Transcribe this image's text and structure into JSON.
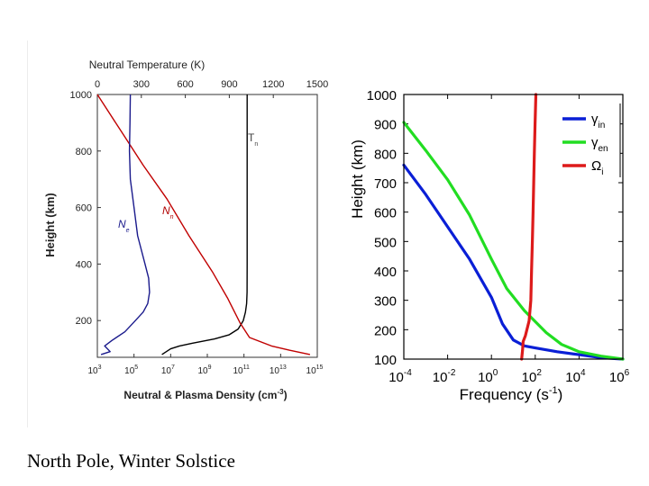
{
  "caption": "North Pole, Winter Solstice",
  "chart_data": [
    {
      "type": "line",
      "title": "",
      "top_axis_label": "Neutral Temperature (K)",
      "top_ticks": [
        "0",
        "300",
        "600",
        "900",
        "1200",
        "1500"
      ],
      "top_tick_values": [
        0,
        300,
        600,
        900,
        1200,
        1500
      ],
      "xlabel": "Neutral & Plasma Density (cm",
      "xlabel_sup": "-3",
      "xlabel_end": ")",
      "x_scale": "log",
      "xlim_log10": [
        3,
        15
      ],
      "x_ticks": [
        {
          "base": "10",
          "exp": "3",
          "log": 3
        },
        {
          "base": "10",
          "exp": "5",
          "log": 5
        },
        {
          "base": "10",
          "exp": "7",
          "log": 7
        },
        {
          "base": "10",
          "exp": "9",
          "log": 9
        },
        {
          "base": "10",
          "exp": "11",
          "log": 11
        },
        {
          "base": "10",
          "exp": "13",
          "log": 13
        },
        {
          "base": "10",
          "exp": "15",
          "log": 15
        }
      ],
      "ylabel": "Height (km)",
      "ylim": [
        70,
        1000
      ],
      "y_ticks": [
        "200",
        "400",
        "600",
        "800",
        "1000"
      ],
      "y_tick_values": [
        200,
        400,
        600,
        800,
        1000
      ],
      "series": [
        {
          "name": "T",
          "sub": "n",
          "axis": "top",
          "color": "#000000",
          "points": [
            [
              440,
              80
            ],
            [
              500,
              100
            ],
            [
              560,
              110
            ],
            [
              650,
              120
            ],
            [
              800,
              135
            ],
            [
              900,
              150
            ],
            [
              960,
              170
            ],
            [
              995,
              200
            ],
            [
              1010,
              230
            ],
            [
              1018,
              260
            ],
            [
              1021,
              300
            ],
            [
              1022,
              400
            ],
            [
              1022,
              600
            ],
            [
              1022,
              800
            ],
            [
              1022,
              1000
            ]
          ]
        },
        {
          "name": "N",
          "sub": "n",
          "axis": "bottom",
          "color": "#c00000",
          "points": [
            [
              3.0,
              1000
            ],
            [
              4.3,
              870
            ],
            [
              5.5,
              750
            ],
            [
              6.8,
              630
            ],
            [
              8.0,
              500
            ],
            [
              9.3,
              370
            ],
            [
              10.1,
              280
            ],
            [
              10.8,
              190
            ],
            [
              11.3,
              140
            ],
            [
              12.5,
              110
            ],
            [
              13.5,
              95
            ],
            [
              14.6,
              80
            ]
          ]
        },
        {
          "name": "N",
          "sub": "e",
          "axis": "bottom",
          "color": "#1a1a8c",
          "points": [
            [
              3.2,
              80
            ],
            [
              3.7,
              90
            ],
            [
              3.4,
              110
            ],
            [
              3.8,
              130
            ],
            [
              4.5,
              160
            ],
            [
              5.0,
              195
            ],
            [
              5.5,
              230
            ],
            [
              5.75,
              260
            ],
            [
              5.85,
              300
            ],
            [
              5.8,
              350
            ],
            [
              5.6,
              400
            ],
            [
              5.2,
              500
            ],
            [
              5.0,
              600
            ],
            [
              4.8,
              700
            ],
            [
              4.75,
              800
            ],
            [
              4.78,
              900
            ],
            [
              4.8,
              1000
            ]
          ]
        }
      ]
    },
    {
      "type": "line",
      "title": "",
      "xlabel": "Frequency (s",
      "xlabel_sup": "-1",
      "xlabel_end": ")",
      "x_scale": "log",
      "xlim_log10": [
        -4,
        6
      ],
      "x_ticks": [
        {
          "base": "10",
          "exp": "-4",
          "log": -4
        },
        {
          "base": "10",
          "exp": "-2",
          "log": -2
        },
        {
          "base": "10",
          "exp": "0",
          "log": 0
        },
        {
          "base": "10",
          "exp": "2",
          "log": 2
        },
        {
          "base": "10",
          "exp": "4",
          "log": 4
        },
        {
          "base": "10",
          "exp": "6",
          "log": 6
        }
      ],
      "ylabel": "Height (km)",
      "ylim": [
        100,
        1000
      ],
      "y_ticks": [
        "100",
        "200",
        "300",
        "400",
        "500",
        "600",
        "700",
        "800",
        "900",
        "1000"
      ],
      "y_tick_values": [
        100,
        200,
        300,
        400,
        500,
        600,
        700,
        800,
        900,
        1000
      ],
      "legend_position": "top-right",
      "series": [
        {
          "name": "γ",
          "sub": "in",
          "color": "#0a1fd6",
          "points": [
            [
              -4.0,
              760
            ],
            [
              -3.0,
              660
            ],
            [
              -2.0,
              550
            ],
            [
              -1.0,
              440
            ],
            [
              0.0,
              310
            ],
            [
              0.5,
              220
            ],
            [
              1.0,
              165
            ],
            [
              1.5,
              145
            ],
            [
              2.0,
              138
            ],
            [
              3.0,
              125
            ],
            [
              4.0,
              115
            ],
            [
              5.0,
              105
            ],
            [
              6.0,
              100
            ]
          ]
        },
        {
          "name": "γ",
          "sub": "en",
          "color": "#22dd22",
          "points": [
            [
              -4.0,
              905
            ],
            [
              -3.0,
              810
            ],
            [
              -2.0,
              710
            ],
            [
              -1.0,
              590
            ],
            [
              0.0,
              440
            ],
            [
              0.7,
              340
            ],
            [
              1.5,
              265
            ],
            [
              2.5,
              190
            ],
            [
              3.2,
              150
            ],
            [
              4.0,
              125
            ],
            [
              5.0,
              110
            ],
            [
              6.0,
              100
            ]
          ]
        },
        {
          "name": "Ω",
          "sub": "i",
          "color": "#dd1a1a",
          "points": [
            [
              1.38,
              100
            ],
            [
              1.42,
              130
            ],
            [
              1.45,
              160
            ],
            [
              1.55,
              180
            ],
            [
              1.72,
              230
            ],
            [
              1.8,
              300
            ],
            [
              1.83,
              400
            ],
            [
              1.87,
              500
            ],
            [
              1.9,
              600
            ],
            [
              1.93,
              700
            ],
            [
              1.96,
              800
            ],
            [
              1.99,
              900
            ],
            [
              2.03,
              1000
            ]
          ]
        }
      ]
    }
  ]
}
